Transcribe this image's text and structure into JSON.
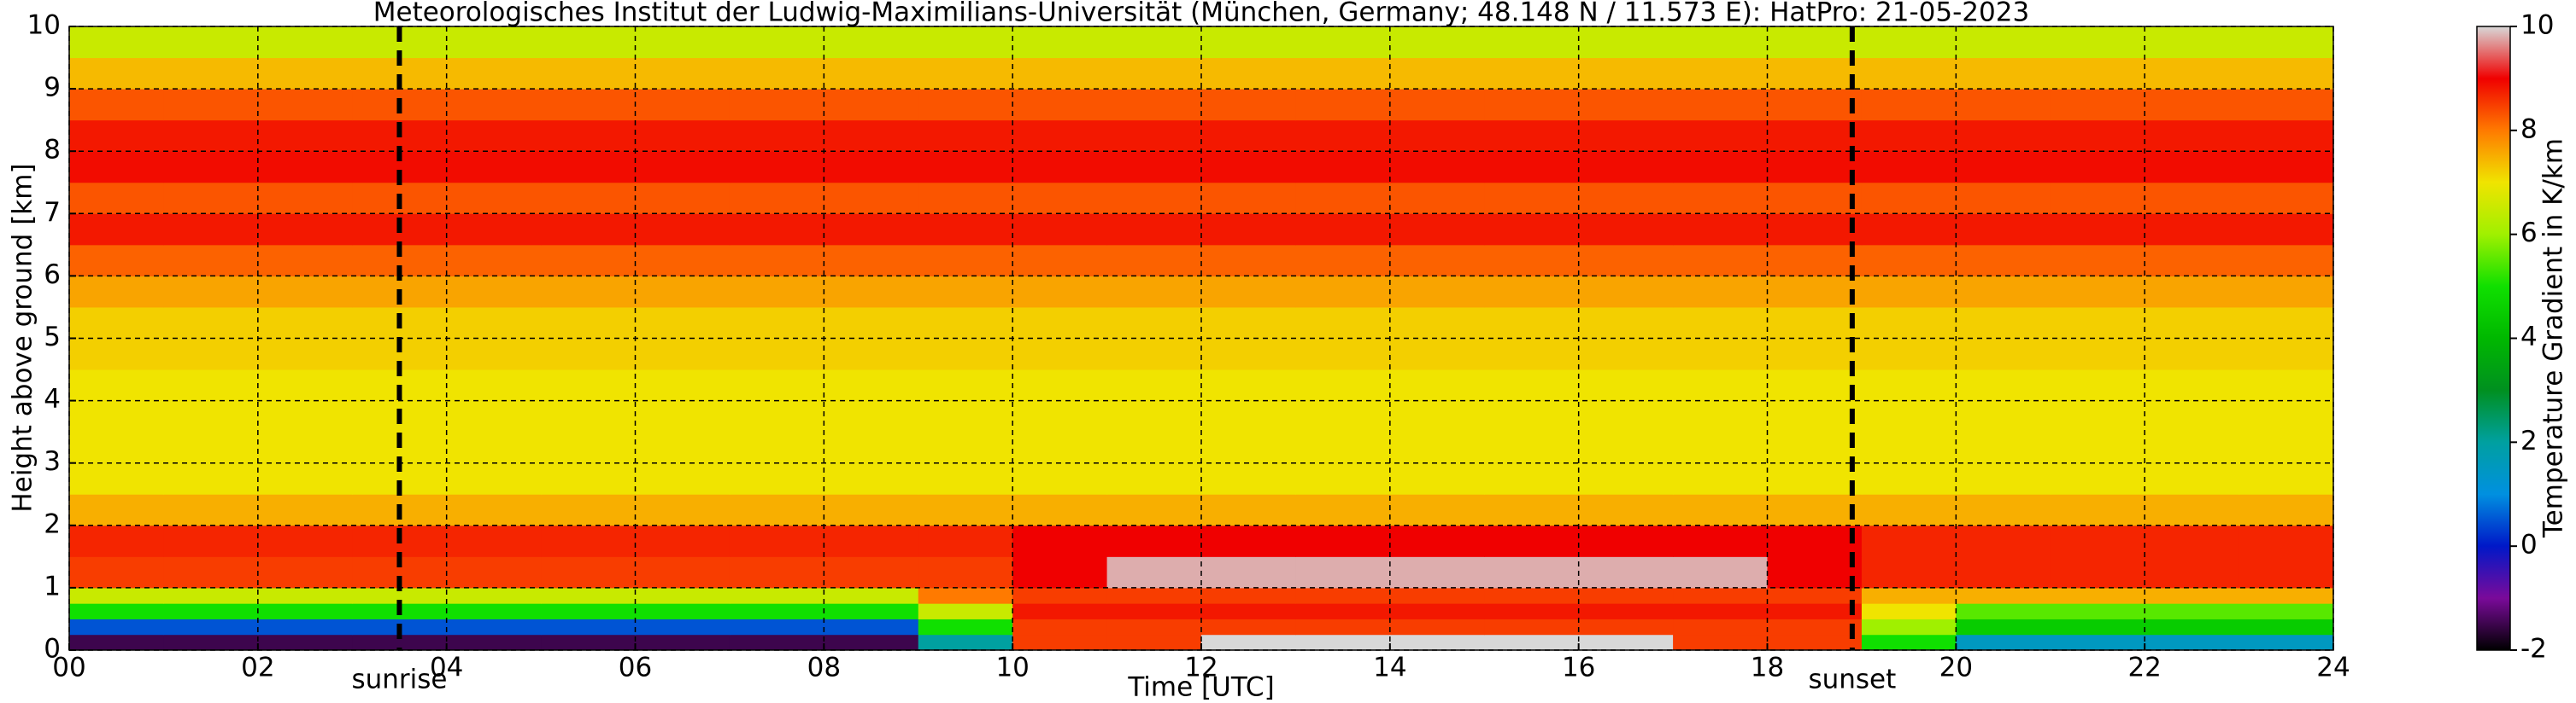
{
  "chart_data": {
    "type": "heatmap",
    "title": "Meteorologisches Institut der Ludwig-Maximilians-Universität (München, Germany; 48.148 N / 11.573 E):    HatPro: 21-05-2023",
    "xlabel": "Time [UTC]",
    "ylabel": "Height above ground [km]",
    "colorbar_label": "Temperature Gradient in K/km",
    "x_edges": [
      0,
      1,
      2,
      3,
      4,
      5,
      6,
      7,
      8,
      9,
      10,
      11,
      12,
      13,
      14,
      15,
      16,
      17,
      18,
      19,
      20,
      21,
      22,
      23,
      24
    ],
    "y_edges": [
      0,
      0.25,
      0.5,
      0.75,
      1,
      1.5,
      2,
      2.5,
      3,
      3.5,
      4,
      4.5,
      5,
      5.5,
      6,
      6.5,
      7,
      7.5,
      8,
      8.5,
      9,
      9.5,
      10
    ],
    "z": [
      [
        -1.5,
        -1.5,
        -1.5,
        -1.5,
        -1.5,
        -1.5,
        -1.5,
        -1.5,
        -1.5,
        2,
        8.5,
        8.5,
        10,
        10,
        10,
        10,
        10,
        8.5,
        8.5,
        5,
        1.5,
        1.5,
        1.5,
        1.5
      ],
      [
        0.5,
        0.5,
        0.5,
        0.5,
        0.5,
        0.5,
        0.5,
        0.5,
        0.5,
        5,
        8.5,
        8.5,
        8.5,
        8.5,
        8.5,
        8.5,
        8.5,
        8.5,
        8.5,
        6,
        4.5,
        4.5,
        4.5,
        4.5
      ],
      [
        5,
        5,
        5,
        5,
        5,
        5,
        5,
        5,
        5,
        6.5,
        8.8,
        8.8,
        8.8,
        8.8,
        8.8,
        8.8,
        8.8,
        8.8,
        8.8,
        7,
        5.5,
        5.5,
        5.5,
        5.5
      ],
      [
        6.5,
        6.5,
        6.5,
        6.5,
        6.5,
        6.5,
        6.5,
        6.5,
        6.5,
        8,
        8.5,
        8.5,
        8.5,
        8.5,
        8.5,
        8.5,
        8.5,
        8.5,
        8.5,
        7.5,
        7.5,
        7.5,
        7.5,
        7.5
      ],
      [
        8.5,
        8.5,
        8.5,
        8.5,
        8.5,
        8.5,
        8.5,
        8.5,
        8.5,
        8.5,
        9,
        9.8,
        9.8,
        9.8,
        9.8,
        9.8,
        9.8,
        9.8,
        9,
        8.7,
        8.7,
        8.7,
        8.7,
        8.7
      ],
      [
        8.7,
        8.7,
        8.7,
        8.7,
        8.7,
        8.7,
        8.7,
        8.7,
        8.7,
        8.7,
        9,
        9,
        9,
        9,
        9,
        9,
        9,
        9,
        9,
        8.7,
        8.7,
        8.7,
        8.7,
        8.7
      ],
      [
        7.5,
        7.5,
        7.5,
        7.5,
        7.5,
        7.5,
        7.5,
        7.5,
        7.5,
        7.5,
        7.5,
        7.5,
        7.5,
        7.5,
        7.5,
        7.5,
        7.5,
        7.5,
        7.5,
        7.5,
        7.5,
        7.5,
        7.5,
        7.5
      ],
      [
        7,
        7,
        7,
        7,
        7,
        7,
        7,
        7,
        7,
        7,
        7,
        7,
        7,
        7,
        7,
        7,
        7,
        7,
        7,
        7,
        7,
        7,
        7,
        7
      ],
      [
        7,
        7,
        7,
        7,
        7,
        7,
        7,
        7,
        7,
        7,
        7,
        7,
        7,
        7,
        7,
        7,
        7,
        7,
        7,
        7,
        7,
        7,
        7,
        7
      ],
      [
        7,
        7,
        7,
        7,
        7,
        7,
        7,
        7,
        7,
        7,
        7,
        7,
        7,
        7,
        7,
        7,
        7,
        7,
        7,
        7,
        7,
        7,
        7,
        7
      ],
      [
        7,
        7,
        7,
        7,
        7,
        7,
        7,
        7,
        7,
        7,
        7,
        7,
        7,
        7,
        7,
        7,
        7,
        7,
        7,
        7,
        7,
        7,
        7,
        7
      ],
      [
        7.2,
        7.2,
        7.2,
        7.2,
        7.2,
        7.2,
        7.2,
        7.2,
        7.2,
        7.2,
        7.2,
        7.2,
        7.2,
        7.2,
        7.2,
        7.2,
        7.2,
        7.2,
        7.2,
        7.2,
        7.2,
        7.2,
        7.2,
        7.2
      ],
      [
        7.2,
        7.2,
        7.2,
        7.2,
        7.2,
        7.2,
        7.2,
        7.2,
        7.2,
        7.2,
        7.2,
        7.2,
        7.2,
        7.2,
        7.2,
        7.2,
        7.2,
        7.2,
        7.2,
        7.2,
        7.2,
        7.2,
        7.2,
        7.2
      ],
      [
        7.6,
        7.6,
        7.6,
        7.6,
        7.6,
        7.6,
        7.6,
        7.6,
        7.6,
        7.6,
        7.6,
        7.6,
        7.6,
        7.6,
        7.6,
        7.6,
        7.6,
        7.6,
        7.6,
        7.6,
        7.6,
        7.6,
        7.6,
        7.6
      ],
      [
        8.2,
        8.2,
        8.2,
        8.2,
        8.2,
        8.2,
        8.2,
        8.2,
        8.2,
        8.2,
        8.2,
        8.2,
        8.2,
        8.2,
        8.2,
        8.2,
        8.2,
        8.2,
        8.2,
        8.2,
        8.2,
        8.2,
        8.2,
        8.2
      ],
      [
        8.8,
        8.8,
        8.8,
        8.8,
        8.8,
        8.8,
        8.8,
        8.8,
        8.8,
        8.8,
        8.8,
        8.8,
        8.8,
        8.8,
        8.8,
        8.8,
        8.8,
        8.8,
        8.8,
        8.8,
        8.8,
        8.8,
        8.8,
        8.8
      ],
      [
        8.3,
        8.3,
        8.3,
        8.3,
        8.3,
        8.3,
        8.3,
        8.3,
        8.3,
        8.3,
        8.3,
        8.3,
        8.3,
        8.3,
        8.3,
        8.3,
        8.3,
        8.3,
        8.3,
        8.3,
        8.3,
        8.3,
        8.3,
        8.3
      ],
      [
        8.9,
        8.9,
        8.9,
        8.9,
        8.9,
        8.9,
        8.9,
        8.9,
        8.9,
        8.9,
        8.9,
        8.9,
        8.9,
        8.9,
        8.9,
        8.9,
        8.9,
        8.9,
        8.9,
        8.9,
        8.9,
        8.9,
        8.9,
        8.9
      ],
      [
        8.8,
        8.8,
        8.8,
        8.8,
        8.8,
        8.8,
        8.8,
        8.8,
        8.8,
        8.8,
        8.8,
        8.8,
        8.8,
        8.8,
        8.8,
        8.8,
        8.8,
        8.8,
        8.8,
        8.8,
        8.8,
        8.8,
        8.8,
        8.8
      ],
      [
        8.3,
        8.3,
        8.3,
        8.3,
        8.3,
        8.3,
        8.3,
        8.3,
        8.3,
        8.3,
        8.3,
        8.3,
        8.3,
        8.3,
        8.3,
        8.3,
        8.3,
        8.3,
        8.3,
        8.3,
        8.3,
        8.3,
        8.3,
        8.3
      ],
      [
        7.4,
        7.4,
        7.4,
        7.4,
        7.4,
        7.4,
        7.4,
        7.4,
        7.4,
        7.4,
        7.4,
        7.4,
        7.4,
        7.4,
        7.4,
        7.4,
        7.4,
        7.4,
        7.4,
        7.4,
        7.4,
        7.4,
        7.4,
        7.4
      ],
      [
        6.5,
        6.5,
        6.5,
        6.5,
        6.5,
        6.5,
        6.5,
        6.5,
        6.5,
        6.5,
        6.5,
        6.5,
        6.5,
        6.5,
        6.5,
        6.5,
        6.5,
        6.5,
        6.5,
        6.5,
        6.5,
        6.5,
        6.5,
        6.5
      ]
    ],
    "xlim": [
      0,
      24
    ],
    "ylim": [
      0,
      10
    ],
    "xticks": [
      {
        "value": 0,
        "label": "00"
      },
      {
        "value": 2,
        "label": "02"
      },
      {
        "value": 4,
        "label": "04"
      },
      {
        "value": 6,
        "label": "06"
      },
      {
        "value": 8,
        "label": "08"
      },
      10,
      12,
      14,
      16,
      18,
      20,
      22,
      24
    ],
    "yticks": [
      0,
      1,
      2,
      3,
      4,
      5,
      6,
      7,
      8,
      9,
      10
    ],
    "clim": [
      -2,
      10
    ],
    "cticks": [
      -2,
      0,
      2,
      4,
      6,
      8,
      10
    ],
    "colormap": [
      "#000000",
      "#7a0a9a",
      "#0018c8",
      "#0090e0",
      "#00a0a0",
      "#009020",
      "#00b800",
      "#10e000",
      "#a0f000",
      "#f0e400",
      "#ff7a00",
      "#f00000",
      "#d8d8d8"
    ],
    "grid": true,
    "annotations": [
      {
        "text": "sunrise",
        "x": 3.5
      },
      {
        "text": "sunset",
        "x": 18.9
      }
    ]
  }
}
